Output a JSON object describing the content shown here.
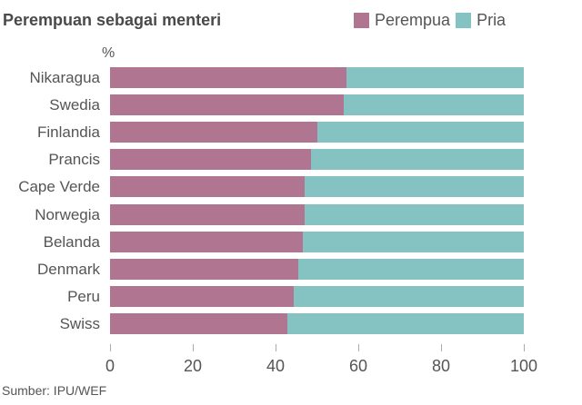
{
  "title": "Perempuan sebagai menteri",
  "unit": "%",
  "legend": [
    {
      "label": "Perempua",
      "color": "#b07591"
    },
    {
      "label": "Pria",
      "color": "#84c3c2"
    }
  ],
  "colors": {
    "female": "#b07591",
    "male": "#84c3c2"
  },
  "source": "Sumber: IPU/WEF",
  "chart_data": {
    "type": "bar",
    "orientation": "horizontal",
    "stacked": true,
    "title": "Perempuan sebagai menteri",
    "xlabel": "",
    "ylabel": "%",
    "xlim": [
      0,
      100
    ],
    "xticks": [
      0,
      20,
      40,
      60,
      80,
      100
    ],
    "legend_position": "top-right",
    "grid": false,
    "categories": [
      "Nikaragua",
      "Swedia",
      "Finlandia",
      "Prancis",
      "Cape Verde",
      "Norwegia",
      "Belanda",
      "Denmark",
      "Peru",
      "Swiss"
    ],
    "series": [
      {
        "name": "Perempua",
        "color": "#b07591",
        "values": [
          57.1,
          56.5,
          50.0,
          48.6,
          47.1,
          47.1,
          46.7,
          45.5,
          44.4,
          42.9
        ]
      },
      {
        "name": "Pria",
        "color": "#84c3c2",
        "values": [
          42.9,
          43.5,
          50.0,
          51.4,
          52.9,
          52.9,
          53.3,
          54.5,
          55.6,
          57.1
        ]
      }
    ],
    "source": "Sumber: IPU/WEF"
  }
}
